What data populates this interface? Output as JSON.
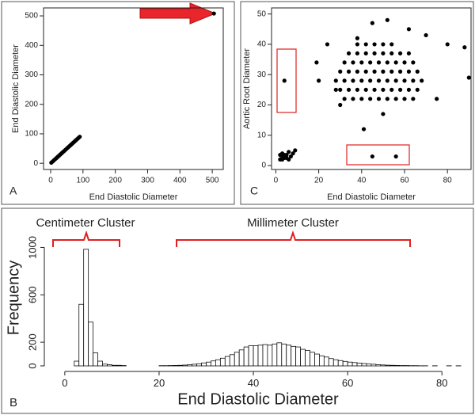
{
  "chart_data": [
    {
      "type": "scatter",
      "panel": "A",
      "xlabel": "End Diastolic Diameter",
      "ylabel": "End Diastolic Diameter",
      "x": [
        2,
        6,
        10,
        14,
        18,
        22,
        26,
        30,
        34,
        38,
        42,
        46,
        50,
        54,
        58,
        62,
        66,
        70,
        74,
        78,
        82,
        86,
        90,
        505
      ],
      "values": [
        2,
        6,
        10,
        14,
        18,
        22,
        26,
        30,
        34,
        38,
        42,
        46,
        50,
        54,
        58,
        62,
        66,
        70,
        74,
        78,
        82,
        86,
        90,
        508
      ],
      "color": "#000000",
      "xlim": [
        -22,
        534
      ],
      "ylim": [
        -21,
        527
      ],
      "xticks": [
        0,
        100,
        200,
        300,
        400,
        500
      ],
      "yticks": [
        0,
        100,
        200,
        300,
        400,
        500
      ]
    },
    {
      "type": "histogram",
      "panel": "B",
      "xlabel": "End Diastolic Diameter",
      "ylabel": "Frequency",
      "annotations": [
        "Centimeter Cluster",
        "Millimeter Cluster"
      ],
      "bins": [
        0,
        1,
        2,
        3,
        4,
        5,
        6,
        7,
        8,
        9,
        10,
        11,
        12,
        13,
        14,
        15,
        16,
        17,
        18,
        19,
        20,
        21,
        22,
        23,
        24,
        25,
        26,
        27,
        28,
        29,
        30,
        31,
        32,
        33,
        34,
        35,
        36,
        37,
        38,
        39,
        40,
        41,
        42,
        43,
        44,
        45,
        46,
        47,
        48,
        49,
        50,
        51,
        52,
        53,
        54,
        55,
        56,
        57,
        58,
        59,
        60,
        61,
        62,
        63,
        64,
        65,
        66,
        67,
        68,
        69,
        70,
        71,
        72,
        73,
        74,
        75,
        76,
        77,
        78,
        79,
        80,
        81,
        82,
        83,
        84
      ],
      "values": [
        0,
        0,
        40,
        520,
        985,
        370,
        110,
        40,
        15,
        10,
        5,
        5,
        3,
        0,
        0,
        0,
        0,
        0,
        0,
        0,
        2,
        2,
        3,
        4,
        5,
        7,
        10,
        14,
        18,
        25,
        32,
        42,
        52,
        65,
        80,
        95,
        115,
        135,
        160,
        170,
        170,
        175,
        180,
        175,
        185,
        195,
        185,
        175,
        165,
        160,
        140,
        130,
        115,
        100,
        85,
        75,
        62,
        52,
        45,
        38,
        32,
        28,
        24,
        20,
        16,
        14,
        10,
        8,
        6,
        5,
        4,
        3,
        3,
        2,
        2,
        1,
        1,
        0,
        1,
        0,
        0,
        1,
        0,
        1
      ],
      "color": "#ffffff",
      "xlim": [
        -3,
        85
      ],
      "ylim": [
        0,
        1150
      ],
      "xticks": [
        0,
        20,
        40,
        60,
        80
      ],
      "yticks": [
        0,
        200,
        600,
        1000
      ]
    },
    {
      "type": "scatter",
      "panel": "C",
      "xlabel": "End Diastolic Diameter",
      "ylabel": "Aortic Root Diameter",
      "x": [
        2,
        3,
        4,
        5,
        6,
        3,
        4,
        5,
        7,
        8,
        9,
        6,
        3,
        2,
        4,
        45,
        56,
        41,
        20,
        19,
        24,
        90,
        88,
        70,
        62,
        52,
        45,
        38,
        80,
        75,
        50,
        30,
        28,
        32,
        36,
        40,
        44,
        48,
        52,
        56,
        60,
        64,
        30,
        34,
        38,
        42,
        46,
        50,
        54,
        58,
        62,
        66,
        28,
        32,
        36,
        40,
        44,
        48,
        52,
        56,
        60,
        64,
        68,
        30,
        34,
        38,
        42,
        46,
        50,
        54,
        58,
        62,
        66,
        32,
        36,
        40,
        44,
        48,
        52,
        56,
        60,
        64,
        34,
        38,
        42,
        46,
        50,
        54,
        58,
        62,
        38,
        42,
        46,
        50,
        54
      ],
      "values": [
        2,
        3,
        2.5,
        3.5,
        2,
        4,
        3.5,
        2.5,
        3,
        4,
        5,
        4.5,
        2,
        3.5,
        28,
        3,
        3,
        12,
        28,
        34,
        40,
        29,
        39,
        43,
        45,
        48,
        47,
        42,
        40,
        22,
        17,
        20,
        25,
        22,
        22,
        22,
        22,
        22,
        22,
        22,
        22,
        22,
        25,
        25,
        25,
        25,
        25,
        25,
        25,
        25,
        25,
        25,
        28,
        28,
        28,
        28,
        28,
        28,
        28,
        28,
        28,
        28,
        28,
        31,
        31,
        31,
        31,
        31,
        31,
        31,
        31,
        31,
        31,
        34,
        34,
        34,
        34,
        34,
        34,
        34,
        34,
        34,
        37,
        37,
        37,
        37,
        37,
        37,
        37,
        37,
        40,
        40,
        40,
        40,
        40
      ],
      "color": "#000000",
      "xlim": [
        -2,
        91
      ],
      "ylim": [
        -1.3,
        52
      ],
      "xticks": [
        0,
        20,
        40,
        60,
        80
      ],
      "yticks": [
        0,
        10,
        20,
        30,
        40,
        50
      ]
    }
  ]
}
